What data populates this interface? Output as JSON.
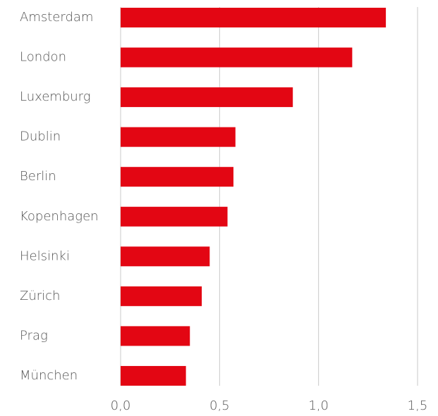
{
  "chart_data": {
    "type": "bar",
    "orientation": "horizontal",
    "categories": [
      "Amsterdam",
      "London",
      "Luxemburg",
      "Dublin",
      "Berlin",
      "Kopenhagen",
      "Helsinki",
      "Zürich",
      "Prag",
      "München"
    ],
    "values": [
      1.34,
      1.17,
      0.87,
      0.58,
      0.57,
      0.54,
      0.45,
      0.41,
      0.35,
      0.33
    ],
    "color": "#e30613",
    "xlim": [
      0,
      1.5
    ],
    "xticks": [
      {
        "value": 0,
        "label": "0,0"
      },
      {
        "value": 0.5,
        "label": "0,5"
      },
      {
        "value": 1,
        "label": "1,0"
      },
      {
        "value": 1.5,
        "label": "1,5"
      }
    ],
    "grid": true
  }
}
